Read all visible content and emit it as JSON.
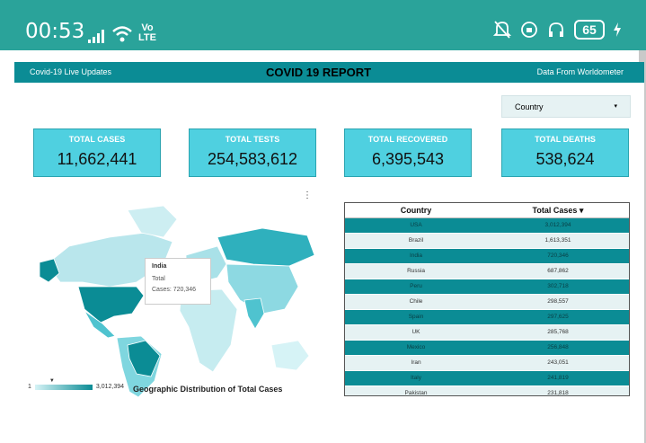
{
  "status_bar": {
    "time": "00:53",
    "volte_top": "Vo",
    "volte_bottom": "LTE",
    "battery": "65"
  },
  "header": {
    "left": "Covid-19 Live Updates",
    "title": "COVID 19 REPORT",
    "right": "Data From Worldometer"
  },
  "filter": {
    "label": "Country"
  },
  "kpis": [
    {
      "label": "TOTAL CASES",
      "value": "11,662,441"
    },
    {
      "label": "TOTAL TESTS",
      "value": "254,583,612"
    },
    {
      "label": "TOTAL RECOVERED",
      "value": "6,395,543"
    },
    {
      "label": "TOTAL DEATHS",
      "value": "538,624"
    }
  ],
  "map": {
    "title": "Geographic Distribution of Total Cases",
    "legend_min": "1",
    "legend_max": "3,012,394",
    "tooltip": {
      "country": "India",
      "metric": "Total",
      "line": "Cases: 720,346"
    }
  },
  "table": {
    "headers": [
      "Country",
      "Total Cases"
    ],
    "sort_indicator": "▾",
    "rows": [
      [
        "USA",
        "3,012,394"
      ],
      [
        "Brazil",
        "1,613,351"
      ],
      [
        "India",
        "720,346"
      ],
      [
        "Russia",
        "687,862"
      ],
      [
        "Peru",
        "302,718"
      ],
      [
        "Chile",
        "298,557"
      ],
      [
        "Spain",
        "297,625"
      ],
      [
        "UK",
        "285,768"
      ],
      [
        "Mexico",
        "256,848"
      ],
      [
        "Iran",
        "243,051"
      ],
      [
        "Italy",
        "241,819"
      ],
      [
        "Pakistan",
        "231,818"
      ]
    ]
  },
  "colors": {
    "accent": "#0b8c95",
    "kpi_bg": "#4fd0e0",
    "status_bar": "#2aa39a"
  }
}
